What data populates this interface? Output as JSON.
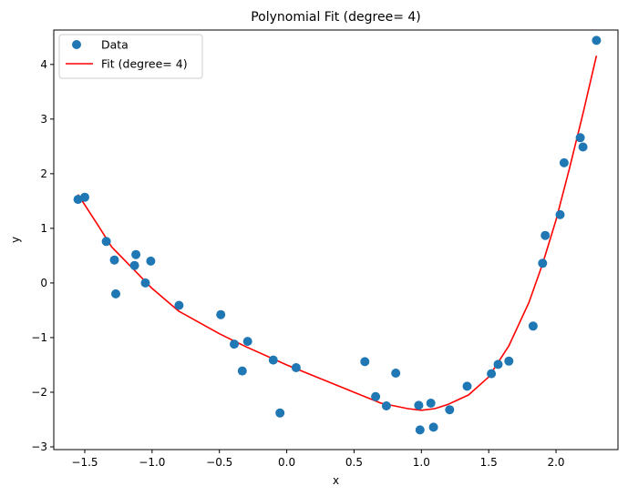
{
  "chart_data": {
    "type": "scatter",
    "title": "Polynomial Fit (degree= 4)",
    "xlabel": "x",
    "ylabel": "y",
    "xlim": [
      -1.73,
      2.46
    ],
    "ylim": [
      -3.05,
      4.63
    ],
    "grid": false,
    "legend_position": "top-left",
    "x_ticks": [
      -1.5,
      -1.0,
      -0.5,
      0.0,
      0.5,
      1.0,
      1.5,
      2.0
    ],
    "x_tick_labels": [
      "−1.5",
      "−1.0",
      "−0.5",
      "0.0",
      "0.5",
      "1.0",
      "1.5",
      "2.0"
    ],
    "y_ticks": [
      -3,
      -2,
      -1,
      0,
      1,
      2,
      3,
      4
    ],
    "y_tick_labels": [
      "−3",
      "−2",
      "−1",
      "0",
      "1",
      "2",
      "3",
      "4"
    ],
    "series": [
      {
        "name": "Data",
        "kind": "scatter",
        "color": "#1f77b4",
        "points": [
          [
            -1.55,
            1.53
          ],
          [
            -1.5,
            1.57
          ],
          [
            -1.34,
            0.76
          ],
          [
            -1.28,
            0.42
          ],
          [
            -1.27,
            -0.2
          ],
          [
            -1.13,
            0.32
          ],
          [
            -1.12,
            0.52
          ],
          [
            -1.05,
            0.0
          ],
          [
            -1.01,
            0.4
          ],
          [
            -0.8,
            -0.41
          ],
          [
            -0.49,
            -0.58
          ],
          [
            -0.39,
            -1.12
          ],
          [
            -0.33,
            -1.61
          ],
          [
            -0.29,
            -1.07
          ],
          [
            -0.1,
            -1.41
          ],
          [
            -0.05,
            -2.38
          ],
          [
            0.07,
            -1.55
          ],
          [
            0.58,
            -1.44
          ],
          [
            0.66,
            -2.08
          ],
          [
            0.74,
            -2.25
          ],
          [
            0.81,
            -1.65
          ],
          [
            0.98,
            -2.24
          ],
          [
            0.99,
            -2.69
          ],
          [
            1.07,
            -2.2
          ],
          [
            1.09,
            -2.64
          ],
          [
            1.21,
            -2.32
          ],
          [
            1.34,
            -1.89
          ],
          [
            1.52,
            -1.66
          ],
          [
            1.57,
            -1.49
          ],
          [
            1.65,
            -1.43
          ],
          [
            1.83,
            -0.79
          ],
          [
            1.9,
            0.36
          ],
          [
            1.92,
            0.87
          ],
          [
            2.03,
            1.25
          ],
          [
            2.06,
            2.2
          ],
          [
            2.18,
            2.66
          ],
          [
            2.2,
            2.49
          ],
          [
            2.3,
            4.44
          ]
        ]
      },
      {
        "name": "Fit (degree= 4)",
        "kind": "line",
        "color": "#ff0000",
        "points": [
          [
            -1.55,
            1.62
          ],
          [
            -1.4,
            1.05
          ],
          [
            -1.3,
            0.66
          ],
          [
            -1.15,
            0.28
          ],
          [
            -1.0,
            -0.1
          ],
          [
            -0.8,
            -0.52
          ],
          [
            -0.5,
            -0.93
          ],
          [
            -0.3,
            -1.17
          ],
          [
            0.0,
            -1.5
          ],
          [
            0.3,
            -1.8
          ],
          [
            0.5,
            -2.0
          ],
          [
            0.7,
            -2.2
          ],
          [
            0.9,
            -2.3
          ],
          [
            1.0,
            -2.33
          ],
          [
            1.1,
            -2.3
          ],
          [
            1.2,
            -2.22
          ],
          [
            1.35,
            -2.05
          ],
          [
            1.5,
            -1.72
          ],
          [
            1.65,
            -1.15
          ],
          [
            1.8,
            -0.35
          ],
          [
            1.9,
            0.35
          ],
          [
            2.0,
            1.15
          ],
          [
            2.1,
            2.1
          ],
          [
            2.2,
            3.1
          ],
          [
            2.3,
            4.16
          ]
        ]
      }
    ]
  }
}
